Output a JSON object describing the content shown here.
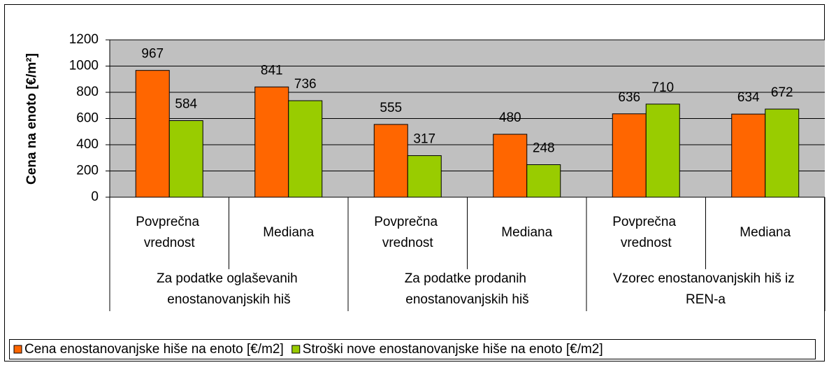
{
  "chart_data": {
    "type": "bar",
    "y_label": "Cena na enoto [€/m²]",
    "categories": [
      "Povprečna vrednost",
      "Mediana",
      "Povprečna vrednost",
      "Mediana",
      "Povprečna vrednost",
      "Mediana"
    ],
    "groups": [
      "Za podatke oglaševanih enostanovanjskih hiš",
      "Za podatke prodanih enostanovanjskih hiš",
      "Vzorec enostanovanjskih hiš iz REN-a"
    ],
    "series": [
      {
        "name": "Cena enostanovanjske hiše na enoto [€/m2]",
        "color": "#ff6600",
        "values": [
          967,
          841,
          555,
          480,
          636,
          634
        ]
      },
      {
        "name": "Stroški nove enostanovanjske hiše na enoto [€/m2]",
        "color": "#99cc00",
        "values": [
          584,
          736,
          317,
          248,
          710,
          672
        ]
      }
    ],
    "ylim": [
      0,
      1200
    ],
    "yticks": [
      0,
      200,
      400,
      600,
      800,
      1000,
      1200
    ],
    "grid": true,
    "plot_background": "#c0c0c0",
    "legend": "bottom"
  }
}
